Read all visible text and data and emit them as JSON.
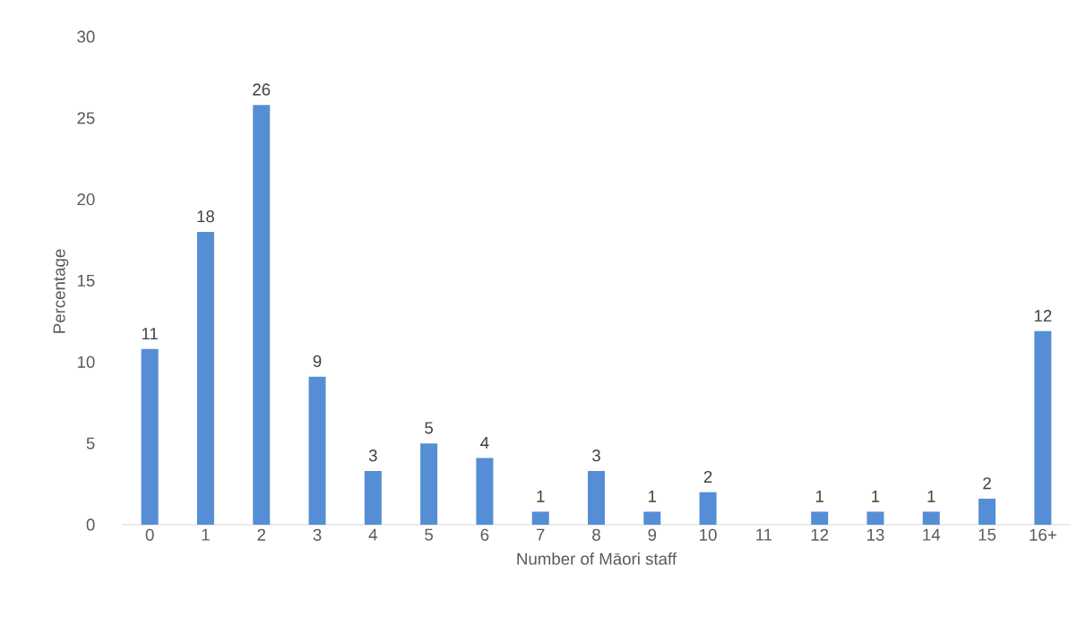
{
  "chart_data": {
    "type": "bar",
    "xlabel": "Number of Māori staff",
    "ylabel": "Percentage",
    "categories": [
      "0",
      "1",
      "2",
      "3",
      "4",
      "5",
      "6",
      "7",
      "8",
      "9",
      "10",
      "11",
      "12",
      "13",
      "14",
      "15",
      "16+"
    ],
    "values": [
      10.8,
      18.0,
      25.8,
      9.1,
      3.3,
      5.0,
      4.1,
      0.8,
      3.3,
      0.8,
      2.0,
      0,
      0.8,
      0.8,
      0.8,
      1.6,
      11.9
    ],
    "value_labels": [
      "11",
      "18",
      "26",
      "9",
      "3",
      "5",
      "4",
      "1",
      "3",
      "1",
      "2",
      null,
      "1",
      "1",
      "1",
      "2",
      "12"
    ],
    "color": "#558ed5",
    "ylim": [
      0,
      30
    ],
    "yticks": [
      0,
      5,
      10,
      15,
      20,
      25,
      30
    ],
    "grid": false
  }
}
